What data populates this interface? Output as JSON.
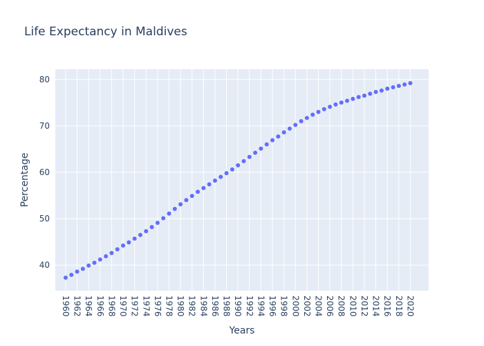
{
  "chart_data": {
    "type": "scatter",
    "title": "Life Expectancy in Maldives",
    "xlabel": "Years",
    "ylabel": "Percentage",
    "x_tick_labels": [
      "1960",
      "1962",
      "1964",
      "1966",
      "1968",
      "1970",
      "1972",
      "1974",
      "1976",
      "1978",
      "1980",
      "1982",
      "1984",
      "1986",
      "1988",
      "1990",
      "1992",
      "1994",
      "1996",
      "1998",
      "2000",
      "2002",
      "2004",
      "2006",
      "2008",
      "2010",
      "2012",
      "2014",
      "2016",
      "2018",
      "2020"
    ],
    "y_ticks": [
      40,
      50,
      60,
      70,
      80
    ],
    "xlim": [
      1958.2,
      2023.2
    ],
    "ylim": [
      34.5,
      82.2
    ],
    "grid": true,
    "colors": {
      "plot_background": "#E5ECF6",
      "grid": "#ffffff",
      "marker": "#636EFA",
      "text": "#2a3f5f"
    },
    "series": [
      {
        "x": [
          1960,
          1961,
          1962,
          1963,
          1964,
          1965,
          1966,
          1967,
          1968,
          1969,
          1970,
          1971,
          1972,
          1973,
          1974,
          1975,
          1976,
          1977,
          1978,
          1979,
          1980,
          1981,
          1982,
          1983,
          1984,
          1985,
          1986,
          1987,
          1988,
          1989,
          1990,
          1991,
          1992,
          1993,
          1994,
          1995,
          1996,
          1997,
          1998,
          1999,
          2000,
          2001,
          2002,
          2003,
          2004,
          2005,
          2006,
          2007,
          2008,
          2009,
          2010,
          2011,
          2012,
          2013,
          2014,
          2015,
          2016,
          2017,
          2018,
          2019,
          2020
        ],
        "y": [
          37.3,
          37.9,
          38.6,
          39.2,
          39.9,
          40.5,
          41.2,
          41.9,
          42.6,
          43.4,
          44.2,
          44.9,
          45.7,
          46.5,
          47.3,
          48.2,
          49.1,
          50.1,
          51.1,
          52.1,
          53.1,
          54.0,
          54.9,
          55.8,
          56.6,
          57.4,
          58.2,
          59.0,
          59.8,
          60.6,
          61.5,
          62.4,
          63.3,
          64.2,
          65.1,
          66.0,
          66.9,
          67.7,
          68.6,
          69.4,
          70.2,
          71.0,
          71.7,
          72.4,
          73.0,
          73.6,
          74.1,
          74.6,
          75.0,
          75.4,
          75.8,
          76.2,
          76.5,
          76.9,
          77.3,
          77.6,
          78.0,
          78.3,
          78.6,
          78.9,
          79.2
        ]
      }
    ]
  }
}
